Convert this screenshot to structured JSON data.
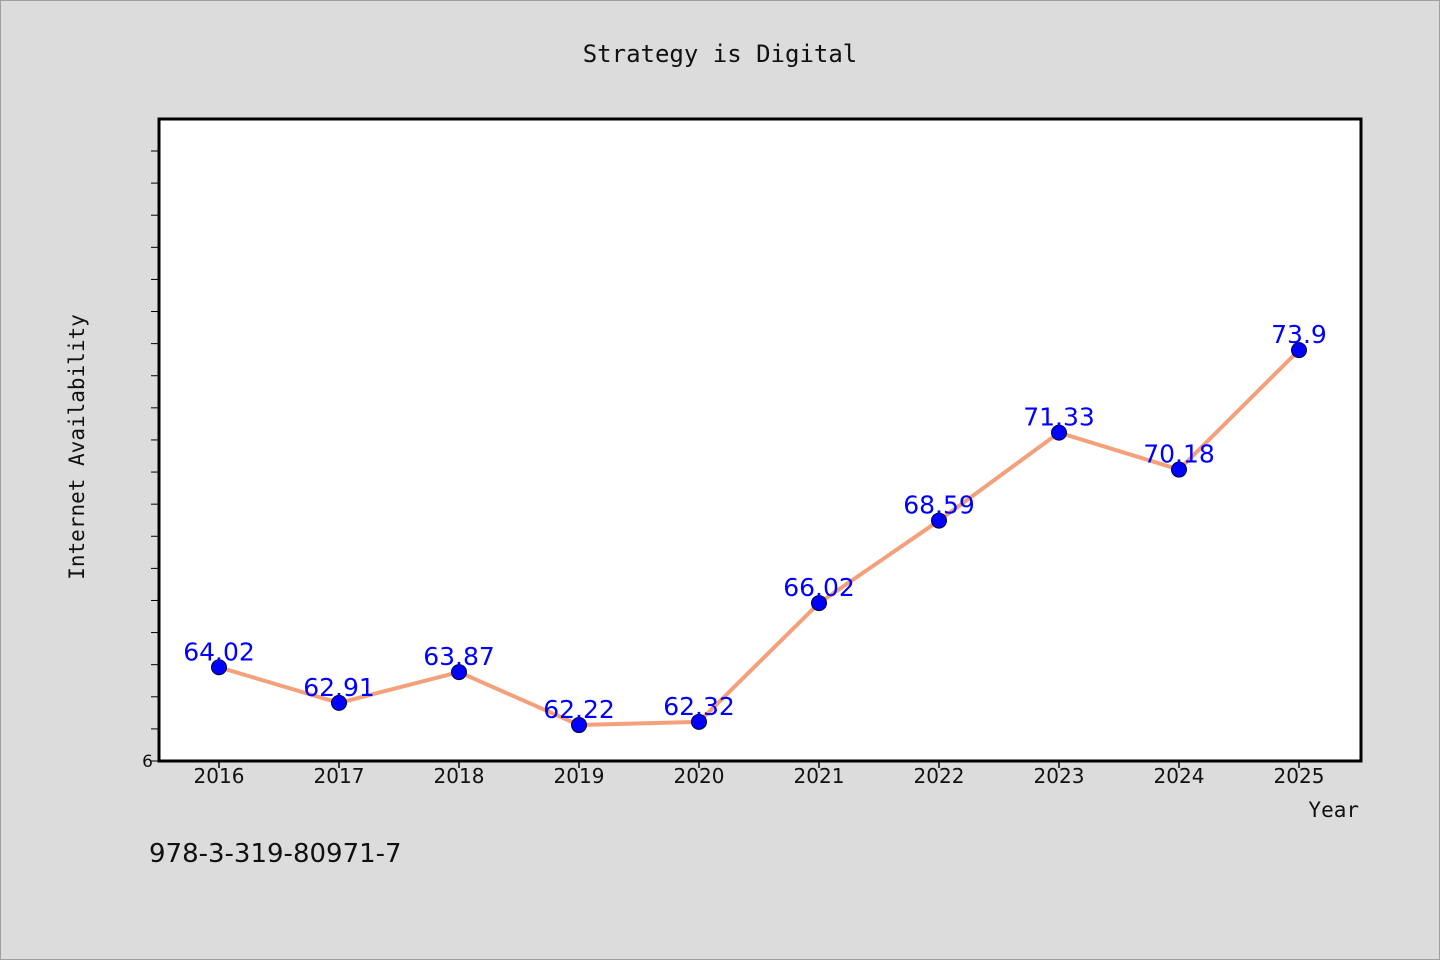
{
  "footer_text": "978-3-319-80971-7",
  "chart_data": {
    "type": "line",
    "title": "Strategy is Digital",
    "xlabel": "Year",
    "ylabel": "Internet Availability",
    "categories": [
      "2016",
      "2017",
      "2018",
      "2019",
      "2020",
      "2021",
      "2022",
      "2023",
      "2024",
      "2025"
    ],
    "series": [
      {
        "values": [
          64.02,
          62.91,
          63.87,
          62.22,
          62.32,
          66.02,
          68.59,
          71.33,
          70.18,
          73.9
        ]
      }
    ],
    "data_labels": [
      "64.02",
      "62.91",
      "63.87",
      "62.22",
      "62.32",
      "66.02",
      "68.59",
      "71.33",
      "70.18",
      "73.9"
    ],
    "ylim": [
      61.1,
      81.1
    ],
    "y_tick_label": "6",
    "grid": false,
    "colors": {
      "line": "#f4a07a",
      "marker": "#0000ff",
      "label": "#0000ff",
      "background": "#dcdcdc",
      "plot_background": "#ffffff"
    }
  }
}
